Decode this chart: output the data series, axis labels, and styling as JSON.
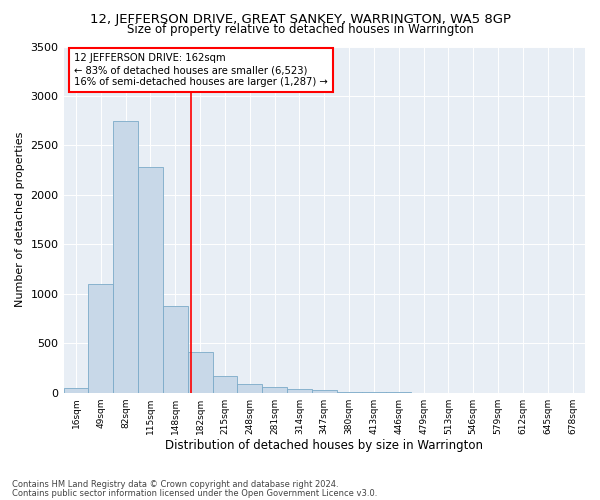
{
  "title": "12, JEFFERSON DRIVE, GREAT SANKEY, WARRINGTON, WA5 8GP",
  "subtitle": "Size of property relative to detached houses in Warrington",
  "xlabel": "Distribution of detached houses by size in Warrington",
  "ylabel": "Number of detached properties",
  "bar_color": "#c8d8e8",
  "bar_edge_color": "#7baac8",
  "background_color": "#e8eef5",
  "categories": [
    "16sqm",
    "49sqm",
    "82sqm",
    "115sqm",
    "148sqm",
    "182sqm",
    "215sqm",
    "248sqm",
    "281sqm",
    "314sqm",
    "347sqm",
    "380sqm",
    "413sqm",
    "446sqm",
    "479sqm",
    "513sqm",
    "546sqm",
    "579sqm",
    "612sqm",
    "645sqm",
    "678sqm"
  ],
  "values": [
    50,
    1100,
    2750,
    2280,
    880,
    410,
    165,
    85,
    60,
    40,
    30,
    10,
    10,
    5,
    0,
    0,
    0,
    0,
    0,
    0,
    0
  ],
  "ylim": [
    0,
    3500
  ],
  "yticks": [
    0,
    500,
    1000,
    1500,
    2000,
    2500,
    3000,
    3500
  ],
  "vline_x": 4.65,
  "annotation_title": "12 JEFFERSON DRIVE: 162sqm",
  "annotation_line1": "← 83% of detached houses are smaller (6,523)",
  "annotation_line2": "16% of semi-detached houses are larger (1,287) →",
  "footer_line1": "Contains HM Land Registry data © Crown copyright and database right 2024.",
  "footer_line2": "Contains public sector information licensed under the Open Government Licence v3.0."
}
